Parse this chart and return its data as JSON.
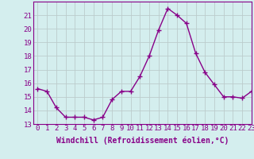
{
  "x": [
    0,
    1,
    2,
    3,
    4,
    5,
    6,
    7,
    8,
    9,
    10,
    11,
    12,
    13,
    14,
    15,
    16,
    17,
    18,
    19,
    20,
    21,
    22,
    23
  ],
  "y": [
    15.6,
    15.4,
    14.2,
    13.5,
    13.5,
    13.5,
    13.3,
    13.5,
    14.8,
    15.4,
    15.4,
    16.5,
    18.0,
    19.9,
    21.5,
    21.0,
    20.4,
    18.2,
    16.8,
    15.9,
    15.0,
    15.0,
    14.9,
    15.4
  ],
  "line_color": "#880088",
  "marker": "+",
  "marker_size": 4,
  "background_color": "#d4eeee",
  "grid_color": "#bbcccc",
  "xlabel": "Windchill (Refroidissement éolien,°C)",
  "ylabel": "",
  "ylim": [
    13,
    22
  ],
  "xlim": [
    -0.5,
    23
  ],
  "yticks": [
    13,
    14,
    15,
    16,
    17,
    18,
    19,
    20,
    21
  ],
  "xticks": [
    0,
    1,
    2,
    3,
    4,
    5,
    6,
    7,
    8,
    9,
    10,
    11,
    12,
    13,
    14,
    15,
    16,
    17,
    18,
    19,
    20,
    21,
    22,
    23
  ],
  "tick_label_fontsize": 6.5,
  "xlabel_fontsize": 7,
  "line_width": 1.0
}
